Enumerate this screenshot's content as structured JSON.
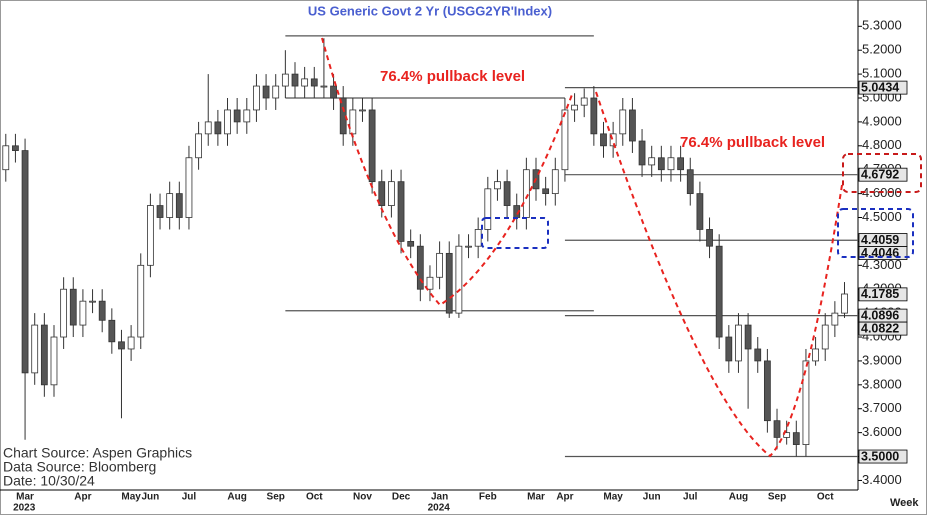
{
  "chart_data": {
    "type": "candlestick",
    "title": "US  Generic  Govt  2  Yr  (USGG2YR'Index)",
    "annotations": [
      "76.4% pullback level",
      "76.4% pullback level"
    ],
    "source_lines": [
      "Chart Source:  Aspen Graphics",
      "Data Source:  Bloomberg",
      "Date:  10/30/24"
    ],
    "x_label": "Week",
    "categories": [
      null,
      null,
      "Mar",
      null,
      null,
      null,
      null,
      null,
      "Apr",
      null,
      null,
      null,
      null,
      "May",
      null,
      "Jun",
      null,
      null,
      null,
      "Jul",
      null,
      null,
      null,
      null,
      "Aug",
      null,
      null,
      null,
      "Sep",
      null,
      null,
      null,
      "Oct",
      null,
      null,
      null,
      null,
      "Nov",
      null,
      null,
      null,
      "Dec",
      null,
      null,
      null,
      "Jan",
      null,
      null,
      null,
      null,
      "Feb",
      null,
      null,
      null,
      null,
      "Mar",
      null,
      null,
      "Apr",
      null,
      null,
      null,
      null,
      "May",
      null,
      null,
      null,
      "Jun",
      null,
      null,
      null,
      "Jul",
      null,
      null,
      null,
      null,
      "Aug",
      null,
      null,
      null,
      "Sep",
      null,
      null,
      null,
      null,
      "Oct",
      null,
      null
    ],
    "years": [
      null,
      null,
      "2023",
      null,
      null,
      null,
      null,
      null,
      null,
      null,
      null,
      null,
      null,
      null,
      null,
      null,
      null,
      null,
      null,
      null,
      null,
      null,
      null,
      null,
      null,
      null,
      null,
      null,
      null,
      null,
      null,
      null,
      null,
      null,
      null,
      null,
      null,
      null,
      null,
      null,
      null,
      null,
      null,
      null,
      null,
      "2024",
      null,
      null,
      null,
      null,
      null,
      null,
      null,
      null,
      null,
      null,
      null,
      null,
      null,
      null,
      null,
      null,
      null,
      null,
      null,
      null,
      null,
      null,
      null,
      null,
      null,
      null,
      null,
      null,
      null,
      null,
      null,
      null,
      null,
      null,
      null,
      null,
      null,
      null,
      null,
      null,
      null,
      null
    ],
    "open": [
      4.7,
      4.8,
      4.78,
      3.85,
      4.05,
      3.8,
      4.0,
      4.2,
      4.05,
      4.15,
      4.15,
      4.07,
      3.98,
      3.95,
      4.0,
      4.3,
      4.55,
      4.5,
      4.6,
      4.5,
      4.75,
      4.85,
      4.9,
      4.85,
      4.95,
      4.9,
      4.95,
      5.05,
      5.0,
      5.05,
      5.1,
      5.05,
      5.08,
      5.05,
      5.05,
      5.0,
      4.85,
      4.95,
      4.95,
      4.65,
      4.55,
      4.65,
      4.4,
      4.38,
      4.2,
      4.25,
      4.35,
      4.1,
      4.38,
      4.38,
      4.45,
      4.62,
      4.65,
      4.55,
      4.5,
      4.7,
      4.62,
      4.6,
      4.7,
      4.95,
      4.97,
      5.0,
      4.85,
      4.8,
      4.85,
      4.95,
      4.82,
      4.72,
      4.75,
      4.7,
      4.75,
      4.7,
      4.6,
      4.45,
      4.38,
      4.0,
      3.9,
      4.05,
      3.95,
      3.9,
      3.65,
      3.58,
      3.6,
      3.55,
      3.9,
      3.95,
      4.05,
      4.1
    ],
    "high": [
      4.85,
      4.85,
      4.83,
      4.1,
      4.1,
      4.05,
      4.25,
      4.25,
      4.2,
      4.2,
      4.2,
      4.12,
      4.03,
      4.05,
      4.35,
      4.6,
      4.6,
      4.65,
      4.65,
      4.8,
      4.9,
      5.1,
      4.95,
      5.0,
      5.0,
      5.0,
      5.1,
      5.1,
      5.1,
      5.2,
      5.15,
      5.13,
      5.13,
      5.25,
      5.1,
      5.05,
      5.0,
      5.0,
      5.0,
      4.7,
      4.7,
      4.7,
      4.45,
      4.43,
      4.3,
      4.4,
      4.4,
      4.43,
      4.43,
      4.5,
      4.67,
      4.7,
      4.7,
      4.6,
      4.75,
      4.75,
      4.67,
      4.75,
      5.0,
      5.02,
      5.04,
      5.05,
      4.9,
      4.9,
      5.0,
      5.0,
      4.87,
      4.8,
      4.8,
      4.8,
      4.8,
      4.75,
      4.65,
      4.5,
      4.43,
      4.05,
      4.1,
      4.1,
      4.0,
      3.95,
      3.7,
      3.65,
      3.65,
      3.95,
      4.0,
      4.1,
      4.15,
      4.23
    ],
    "low": [
      4.65,
      4.73,
      3.57,
      3.8,
      3.75,
      3.75,
      3.95,
      4.0,
      4.0,
      4.1,
      4.02,
      3.93,
      3.66,
      3.9,
      3.95,
      4.25,
      4.45,
      4.45,
      4.45,
      4.45,
      4.7,
      4.8,
      4.8,
      4.8,
      4.85,
      4.85,
      4.9,
      4.95,
      4.95,
      5.0,
      5.0,
      5.0,
      5.0,
      5.0,
      4.95,
      4.8,
      4.8,
      4.9,
      4.6,
      4.5,
      4.5,
      4.35,
      4.33,
      4.15,
      4.15,
      4.2,
      4.08,
      4.08,
      4.33,
      4.33,
      4.4,
      4.57,
      4.5,
      4.45,
      4.45,
      4.57,
      4.55,
      4.55,
      4.65,
      4.9,
      4.92,
      4.8,
      4.75,
      4.75,
      4.8,
      4.77,
      4.67,
      4.67,
      4.65,
      4.65,
      4.65,
      4.55,
      4.4,
      4.33,
      3.95,
      3.85,
      3.85,
      3.7,
      3.85,
      3.6,
      3.53,
      3.55,
      3.5,
      3.5,
      3.88,
      3.9,
      4.0,
      4.08
    ],
    "close": [
      4.8,
      4.78,
      3.85,
      4.05,
      3.8,
      4.0,
      4.2,
      4.05,
      4.15,
      4.15,
      4.07,
      3.98,
      3.95,
      4.0,
      4.3,
      4.55,
      4.5,
      4.6,
      4.5,
      4.75,
      4.85,
      4.9,
      4.85,
      4.95,
      4.9,
      4.95,
      5.05,
      5.0,
      5.05,
      5.1,
      5.05,
      5.08,
      5.05,
      5.05,
      5.0,
      4.85,
      4.95,
      4.95,
      4.65,
      4.55,
      4.65,
      4.4,
      4.38,
      4.2,
      4.25,
      4.35,
      4.1,
      4.38,
      4.38,
      4.45,
      4.62,
      4.65,
      4.55,
      4.5,
      4.7,
      4.62,
      4.6,
      4.7,
      4.95,
      4.97,
      5.0,
      4.85,
      4.8,
      4.85,
      4.95,
      4.82,
      4.72,
      4.75,
      4.7,
      4.75,
      4.7,
      4.6,
      4.45,
      4.38,
      4.0,
      3.9,
      4.05,
      3.95,
      3.9,
      3.65,
      3.58,
      3.6,
      3.55,
      3.9,
      3.95,
      4.05,
      4.1,
      4.18
    ],
    "up_color": "#ffffff",
    "down_color": "#555555",
    "ylim": [
      3.36,
      5.41
    ],
    "yticks": [
      {
        "value": 5.3,
        "label": "5.3000"
      },
      {
        "value": 5.2,
        "label": "5.2000"
      },
      {
        "value": 5.1,
        "label": "5.1000"
      },
      {
        "value": 5.0,
        "label": "5.0000"
      },
      {
        "value": 4.9,
        "label": "4.9000"
      },
      {
        "value": 4.8,
        "label": "4.8000"
      },
      {
        "value": 4.7,
        "label": "4.7000"
      },
      {
        "value": 4.6,
        "label": "4.6000"
      },
      {
        "value": 4.5,
        "label": "4.5000"
      },
      {
        "value": 4.4,
        "label": "4.4000"
      },
      {
        "value": 4.3,
        "label": "4.3000"
      },
      {
        "value": 4.2,
        "label": "4.2000"
      },
      {
        "value": 4.1,
        "label": "4.1000"
      },
      {
        "value": 4.0,
        "label": "4.0000"
      },
      {
        "value": 3.9,
        "label": "3.9000"
      },
      {
        "value": 3.8,
        "label": "3.8000"
      },
      {
        "value": 3.7,
        "label": "3.7000"
      },
      {
        "value": 3.6,
        "label": "3.6000"
      },
      {
        "value": 3.5,
        "label": "3.5000"
      },
      {
        "value": 3.4,
        "label": "3.4000"
      }
    ],
    "price_labels": [
      {
        "value": 5.0434,
        "label": "5.0434"
      },
      {
        "value": 4.6792,
        "label": "4.6792"
      },
      {
        "value": 4.4059,
        "label": "4.4059"
      },
      {
        "value": 4.4046,
        "label": "4.4046"
      },
      {
        "value": 4.1785,
        "label": "4.1785"
      },
      {
        "value": 4.0896,
        "label": "4.0896"
      },
      {
        "value": 4.0822,
        "label": "4.0822"
      },
      {
        "value": 3.5,
        "label": "3.5000"
      }
    ],
    "ref_lines": [
      {
        "value": 5.26,
        "start": 29,
        "end": 61
      },
      {
        "value": 5.0,
        "start": 29,
        "end": 58
      },
      {
        "value": 4.11,
        "start": 29,
        "end": 61
      },
      {
        "value": 5.0434,
        "start": 58,
        "end": 89
      },
      {
        "value": 4.6792,
        "start": 58,
        "end": 89
      },
      {
        "value": 4.405,
        "start": 58,
        "end": 89
      },
      {
        "value": 4.0896,
        "start": 58,
        "end": 89
      },
      {
        "value": 3.5,
        "start": 58,
        "end": 89
      }
    ]
  }
}
